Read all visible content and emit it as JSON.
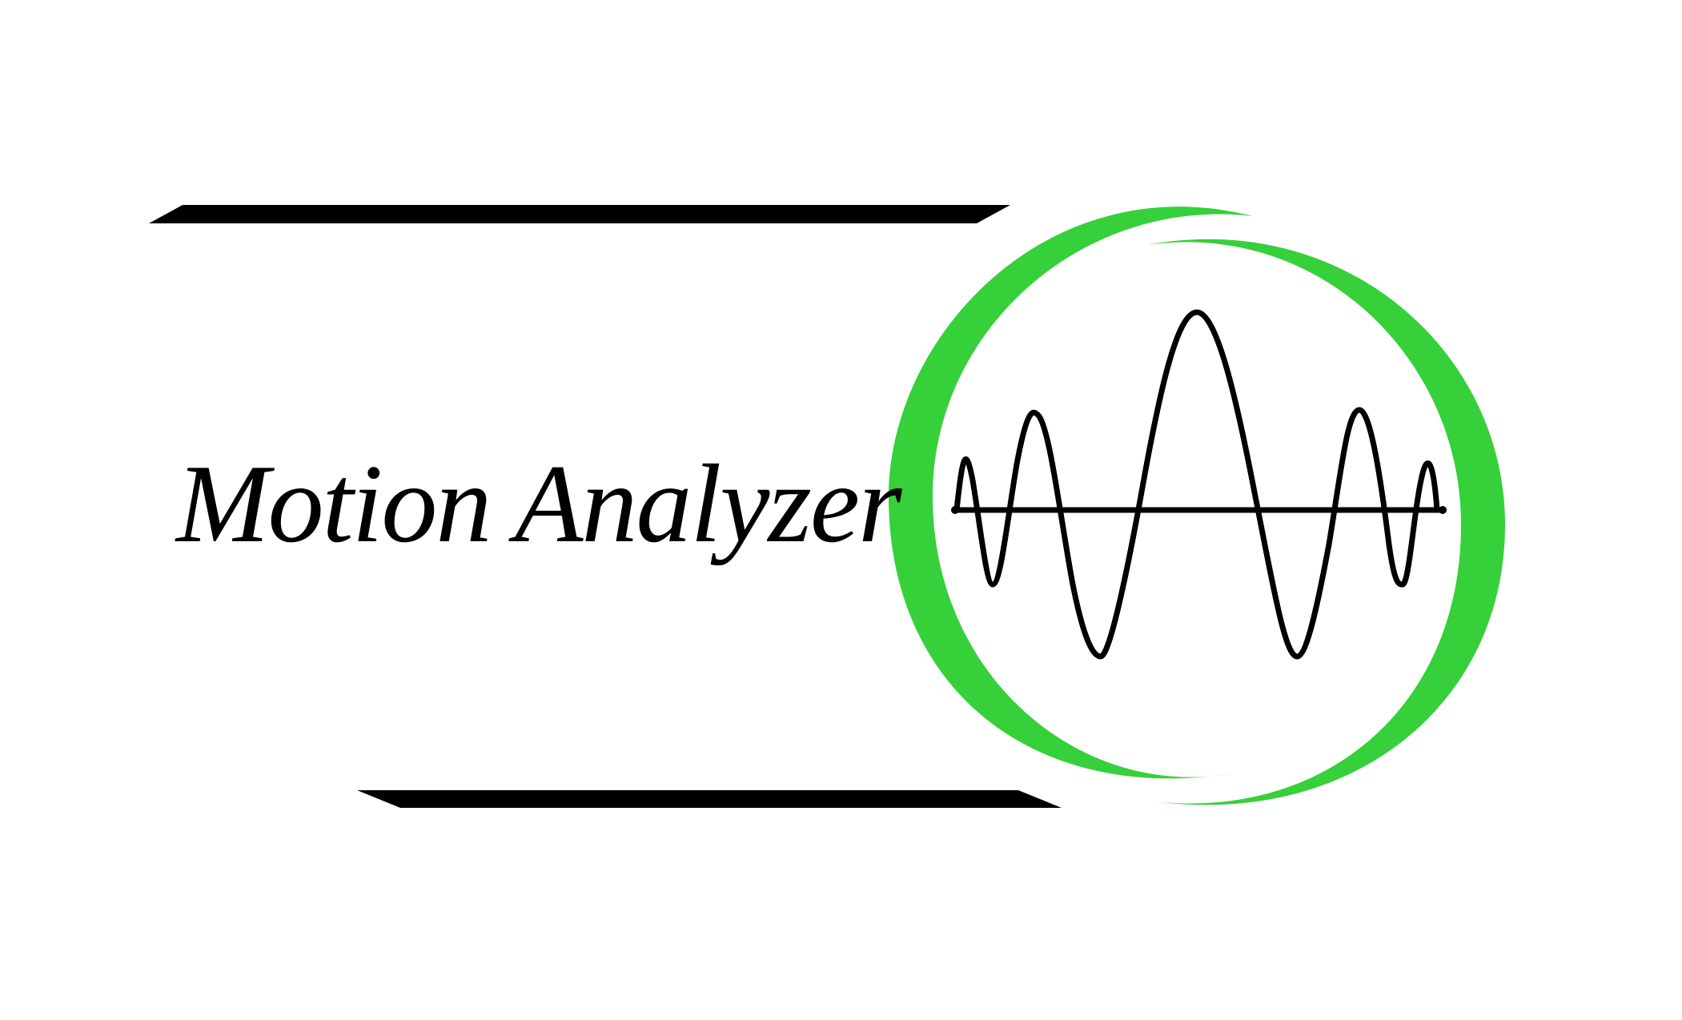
{
  "logo": {
    "brand_name": "Motion Analyzer",
    "text_color": "#000000",
    "accent_color": "#36d03a",
    "bar_color": "#000000",
    "wave_color": "#000000",
    "background_color": "#ffffff",
    "icons": [
      "sine-wave-icon",
      "circular-swoosh-icon"
    ]
  }
}
